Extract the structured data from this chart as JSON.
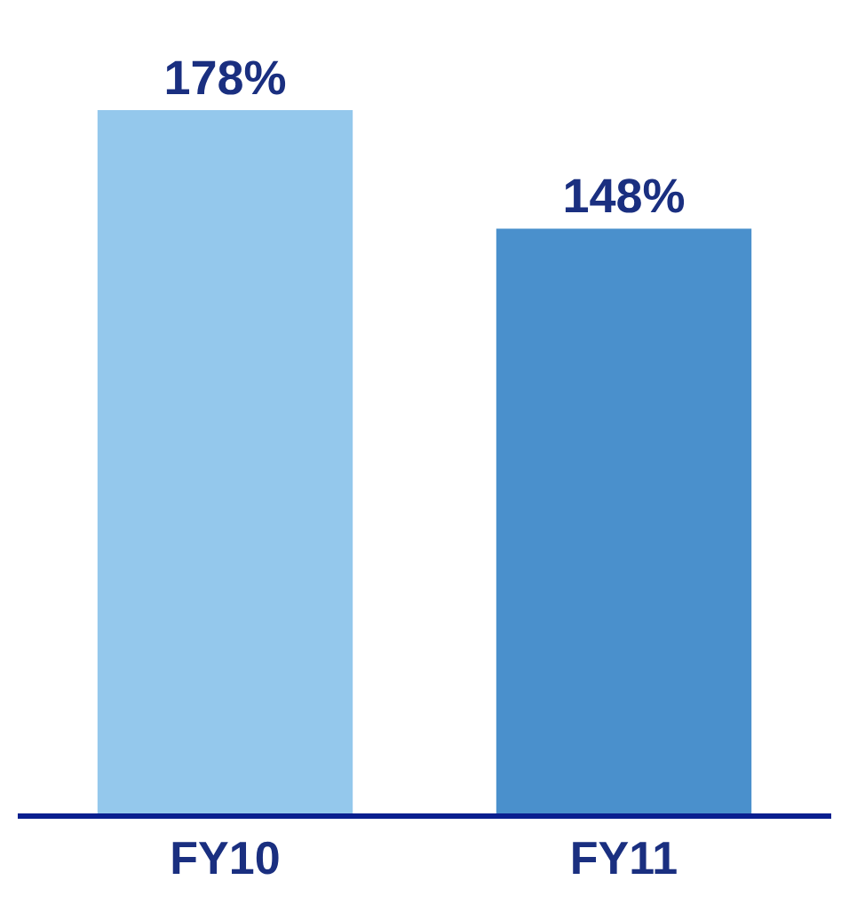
{
  "chart_data": {
    "type": "bar",
    "categories": [
      "FY10",
      "FY11"
    ],
    "values": [
      178,
      148
    ],
    "colors": [
      "#94c8ec",
      "#4a90cc"
    ],
    "value_labels": [
      "178%",
      "148%"
    ],
    "legend": false
  }
}
